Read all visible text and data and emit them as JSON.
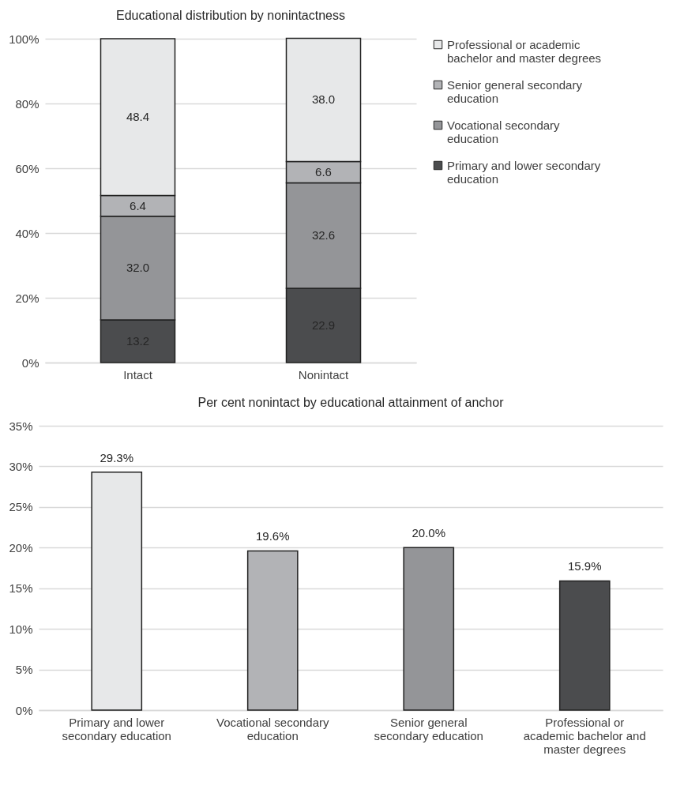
{
  "chart_data": [
    {
      "type": "bar",
      "title": "Educational distribution by nonintactness",
      "categories": [
        "Intact",
        "Nonintact"
      ],
      "stacked": true,
      "legend": "right",
      "grid": "y",
      "ylim": [
        0,
        100
      ],
      "yticks": [
        {
          "value": 0,
          "label": "0%"
        },
        {
          "value": 20,
          "label": "20%"
        },
        {
          "value": 40,
          "label": "40%"
        },
        {
          "value": 60,
          "label": "60%"
        },
        {
          "value": 80,
          "label": "80%"
        },
        {
          "value": 100,
          "label": "100%"
        }
      ],
      "series": [
        {
          "name": "Primary and lower secondary education",
          "color": "#4b4c4e",
          "values": [
            13.2,
            22.9
          ],
          "value_labels": [
            "13.2",
            "22.9"
          ]
        },
        {
          "name": "Vocational secondary education",
          "color": "#949598",
          "values": [
            32.0,
            32.6
          ],
          "value_labels": [
            "32.0",
            "32.6"
          ]
        },
        {
          "name": "Senior general secondary education",
          "color": "#b2b3b6",
          "values": [
            6.4,
            6.6
          ],
          "value_labels": [
            "6.4",
            "6.6"
          ]
        },
        {
          "name": "Professional or academic bachelor and master degrees",
          "color": "#e7e8e9",
          "values": [
            48.4,
            38.0
          ],
          "value_labels": [
            "48.4",
            "38.0"
          ]
        }
      ]
    },
    {
      "type": "bar",
      "title": "Per cent nonintact by educational attainment of anchor",
      "categories": [
        "Primary and lower secondary education",
        "Vocational secondary education",
        "Senior general secondary education",
        "Professional or academic bachelor and master degrees"
      ],
      "values": [
        29.3,
        19.6,
        20.0,
        15.9
      ],
      "colors": [
        "#e7e8e9",
        "#b2b3b6",
        "#949598",
        "#4b4c4e"
      ],
      "value_labels": [
        "29.3%",
        "19.6%",
        "20.0%",
        "15.9%"
      ],
      "grid": "y",
      "ylim": [
        0,
        35
      ],
      "yticks": [
        {
          "value": 0,
          "label": "0%"
        },
        {
          "value": 5,
          "label": "5%"
        },
        {
          "value": 10,
          "label": "10%"
        },
        {
          "value": 15,
          "label": "15%"
        },
        {
          "value": 20,
          "label": "20%"
        },
        {
          "value": 25,
          "label": "25%"
        },
        {
          "value": 30,
          "label": "30%"
        },
        {
          "value": 35,
          "label": "35%"
        }
      ]
    }
  ]
}
